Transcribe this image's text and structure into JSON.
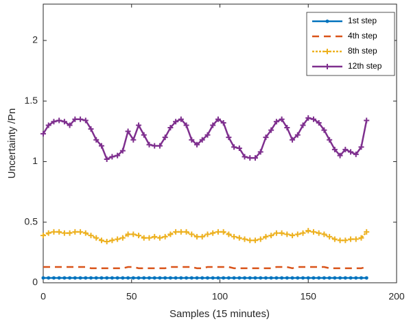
{
  "chart_data": {
    "type": "line",
    "xlabel": "Samples (15 minutes)",
    "ylabel": "Uncertainty /Pn",
    "x": [
      0,
      3,
      6,
      9,
      12,
      15,
      18,
      21,
      24,
      27,
      30,
      33,
      36,
      39,
      42,
      45,
      48,
      51,
      54,
      57,
      60,
      63,
      66,
      69,
      72,
      75,
      78,
      81,
      84,
      87,
      90,
      93,
      96,
      99,
      102,
      105,
      108,
      111,
      114,
      117,
      120,
      123,
      126,
      129,
      132,
      135,
      138,
      141,
      144,
      147,
      150,
      153,
      156,
      159,
      162,
      165,
      168,
      171,
      174,
      177,
      180,
      183
    ],
    "series": [
      {
        "name": "1st step",
        "color": "#0072bd",
        "style": "solid",
        "marker": "dot",
        "values": [
          0.04,
          0.04,
          0.04,
          0.04,
          0.04,
          0.04,
          0.04,
          0.04,
          0.04,
          0.04,
          0.04,
          0.04,
          0.04,
          0.04,
          0.04,
          0.04,
          0.04,
          0.04,
          0.04,
          0.04,
          0.04,
          0.04,
          0.04,
          0.04,
          0.04,
          0.04,
          0.04,
          0.04,
          0.04,
          0.04,
          0.04,
          0.04,
          0.04,
          0.04,
          0.04,
          0.04,
          0.04,
          0.04,
          0.04,
          0.04,
          0.04,
          0.04,
          0.04,
          0.04,
          0.04,
          0.04,
          0.04,
          0.04,
          0.04,
          0.04,
          0.04,
          0.04,
          0.04,
          0.04,
          0.04,
          0.04,
          0.04,
          0.04,
          0.04,
          0.04,
          0.04,
          0.04
        ]
      },
      {
        "name": "4th step",
        "color": "#d95319",
        "style": "dashed",
        "marker": "none",
        "values": [
          0.13,
          0.13,
          0.13,
          0.13,
          0.13,
          0.13,
          0.13,
          0.13,
          0.13,
          0.12,
          0.12,
          0.12,
          0.12,
          0.12,
          0.12,
          0.12,
          0.13,
          0.13,
          0.12,
          0.12,
          0.12,
          0.12,
          0.12,
          0.12,
          0.13,
          0.13,
          0.13,
          0.13,
          0.13,
          0.12,
          0.12,
          0.13,
          0.13,
          0.13,
          0.13,
          0.13,
          0.12,
          0.12,
          0.12,
          0.12,
          0.12,
          0.12,
          0.12,
          0.12,
          0.13,
          0.13,
          0.13,
          0.12,
          0.13,
          0.13,
          0.13,
          0.13,
          0.13,
          0.13,
          0.12,
          0.12,
          0.12,
          0.12,
          0.12,
          0.12,
          0.12,
          0.13
        ]
      },
      {
        "name": "8th step",
        "color": "#edb120",
        "style": "dotted",
        "marker": "plus",
        "values": [
          0.39,
          0.41,
          0.42,
          0.42,
          0.41,
          0.41,
          0.42,
          0.42,
          0.41,
          0.39,
          0.37,
          0.35,
          0.34,
          0.35,
          0.36,
          0.37,
          0.4,
          0.4,
          0.39,
          0.37,
          0.37,
          0.38,
          0.37,
          0.38,
          0.4,
          0.42,
          0.42,
          0.42,
          0.4,
          0.38,
          0.38,
          0.4,
          0.41,
          0.42,
          0.42,
          0.4,
          0.38,
          0.37,
          0.36,
          0.35,
          0.35,
          0.36,
          0.38,
          0.39,
          0.41,
          0.41,
          0.4,
          0.39,
          0.4,
          0.41,
          0.43,
          0.42,
          0.41,
          0.4,
          0.38,
          0.36,
          0.35,
          0.35,
          0.36,
          0.36,
          0.37,
          0.42
        ]
      },
      {
        "name": "12th step",
        "color": "#7e2f8e",
        "style": "solid",
        "marker": "plus",
        "values": [
          1.23,
          1.3,
          1.33,
          1.34,
          1.33,
          1.3,
          1.35,
          1.35,
          1.34,
          1.27,
          1.18,
          1.13,
          1.02,
          1.04,
          1.05,
          1.09,
          1.25,
          1.18,
          1.3,
          1.22,
          1.14,
          1.13,
          1.13,
          1.2,
          1.28,
          1.33,
          1.35,
          1.3,
          1.18,
          1.14,
          1.18,
          1.22,
          1.3,
          1.35,
          1.32,
          1.2,
          1.12,
          1.11,
          1.04,
          1.03,
          1.03,
          1.08,
          1.2,
          1.26,
          1.33,
          1.35,
          1.28,
          1.18,
          1.22,
          1.3,
          1.36,
          1.35,
          1.32,
          1.26,
          1.18,
          1.1,
          1.05,
          1.1,
          1.08,
          1.06,
          1.12,
          1.34
        ]
      }
    ],
    "xlim": [
      0,
      200
    ],
    "xticks": [
      0,
      50,
      100,
      150,
      200
    ],
    "ylim": [
      0,
      2.3
    ],
    "yticks": [
      0,
      0.5,
      1,
      1.5,
      2
    ],
    "legend": "top-right"
  }
}
